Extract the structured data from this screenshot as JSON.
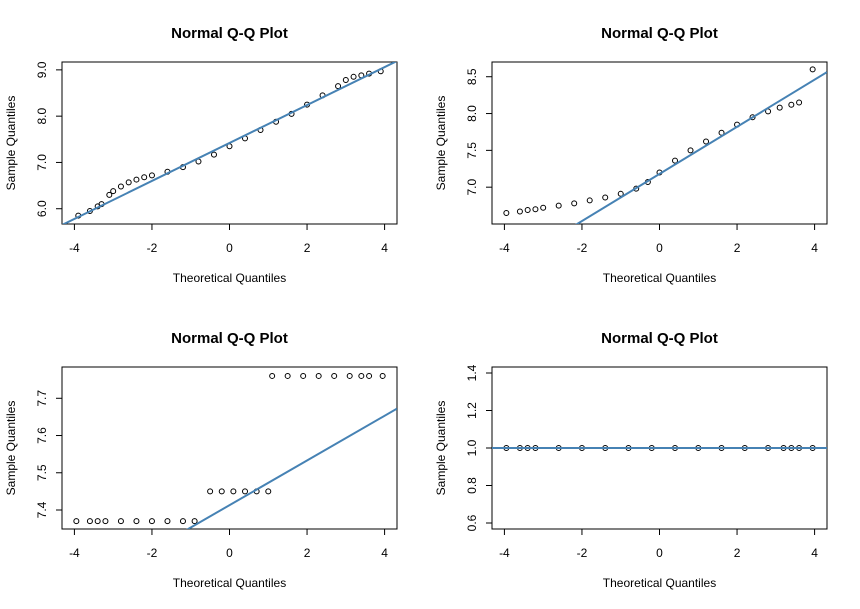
{
  "chart_data": [
    {
      "type": "qq",
      "title": "Normal Q-Q Plot",
      "xlabel": "Theoretical Quantiles",
      "ylabel": "Sample Quantiles",
      "xlim": [
        -4.32,
        4.32
      ],
      "ylim": [
        5.67,
        9.17
      ],
      "xticks": [
        -4,
        -2,
        0,
        2,
        4
      ],
      "yticks": [
        {
          "value": 6,
          "label": "6.0"
        },
        {
          "value": 7,
          "label": "7.0"
        },
        {
          "value": 8,
          "label": "8.0"
        },
        {
          "value": 9,
          "label": "9.0"
        }
      ],
      "point_color": "#000000",
      "line_color": "#4682b4",
      "x": [
        -3.9,
        -3.6,
        -3.4,
        -3.3,
        -3.1,
        -3.0,
        -2.8,
        -2.6,
        -2.4,
        -2.2,
        -2.0,
        -1.6,
        -1.2,
        -0.8,
        -0.4,
        0,
        0.4,
        0.8,
        1.2,
        1.6,
        2.0,
        2.4,
        2.8,
        3.0,
        3.2,
        3.4,
        3.6,
        3.9
      ],
      "y": [
        5.85,
        5.95,
        6.05,
        6.1,
        6.3,
        6.38,
        6.48,
        6.57,
        6.63,
        6.68,
        6.72,
        6.8,
        6.9,
        7.02,
        7.17,
        7.35,
        7.52,
        7.7,
        7.88,
        8.05,
        8.25,
        8.45,
        8.65,
        8.78,
        8.85,
        8.88,
        8.92,
        8.97
      ],
      "line": {
        "intercept": 7.42,
        "slope": 0.41
      }
    },
    {
      "type": "qq",
      "title": "Normal Q-Q Plot",
      "xlabel": "Theoretical Quantiles",
      "ylabel": "Sample Quantiles",
      "xlim": [
        -4.32,
        4.32
      ],
      "ylim": [
        6.5,
        8.7
      ],
      "xticks": [
        -4,
        -2,
        0,
        2,
        4
      ],
      "yticks": [
        {
          "value": 7,
          "label": "7.0"
        },
        7.5,
        {
          "value": 8,
          "label": "8.0"
        },
        8.5
      ],
      "point_color": "#000000",
      "line_color": "#4682b4",
      "x": [
        -3.95,
        -3.6,
        -3.4,
        -3.2,
        -3.0,
        -2.6,
        -2.2,
        -1.8,
        -1.4,
        -1.0,
        -0.6,
        -0.3,
        0,
        0.4,
        0.8,
        1.2,
        1.6,
        2.0,
        2.4,
        2.8,
        3.1,
        3.4,
        3.6,
        3.95
      ],
      "y": [
        6.65,
        6.67,
        6.69,
        6.7,
        6.72,
        6.75,
        6.78,
        6.82,
        6.86,
        6.91,
        6.98,
        7.07,
        7.2,
        7.36,
        7.5,
        7.62,
        7.74,
        7.85,
        7.95,
        8.03,
        8.08,
        8.12,
        8.15,
        8.6
      ],
      "line": {
        "intercept": 7.18,
        "slope": 0.32
      }
    },
    {
      "type": "qq",
      "title": "Normal Q-Q Plot",
      "xlabel": "Theoretical Quantiles",
      "ylabel": "Sample Quantiles",
      "xlim": [
        -4.32,
        4.32
      ],
      "ylim": [
        7.349,
        7.784
      ],
      "xticks": [
        -4,
        -2,
        0,
        2,
        4
      ],
      "yticks": [
        7.4,
        7.5,
        7.6,
        7.7
      ],
      "point_color": "#000000",
      "line_color": "#4682b4",
      "x": [
        -3.95,
        -3.6,
        -3.4,
        -3.2,
        -2.8,
        -2.4,
        -2.0,
        -1.6,
        -1.2,
        -0.9,
        -0.5,
        -0.2,
        0.1,
        0.4,
        0.7,
        1.0,
        1.1,
        1.5,
        1.9,
        2.3,
        2.7,
        3.1,
        3.4,
        3.6,
        3.95
      ],
      "y": [
        7.37,
        7.37,
        7.37,
        7.37,
        7.37,
        7.37,
        7.37,
        7.37,
        7.37,
        7.37,
        7.45,
        7.45,
        7.45,
        7.45,
        7.45,
        7.45,
        7.76,
        7.76,
        7.76,
        7.76,
        7.76,
        7.76,
        7.76,
        7.76,
        7.76
      ],
      "line": {
        "intercept": 7.413,
        "slope": 0.06
      }
    },
    {
      "type": "qq",
      "title": "Normal Q-Q Plot",
      "xlabel": "Theoretical Quantiles",
      "ylabel": "Sample Quantiles",
      "xlim": [
        -4.32,
        4.32
      ],
      "ylim": [
        0.568,
        1.432
      ],
      "xticks": [
        -4,
        -2,
        0,
        2,
        4
      ],
      "yticks": [
        0.6,
        0.8,
        {
          "value": 1,
          "label": "1.0"
        },
        1.2,
        1.4
      ],
      "point_color": "#000000",
      "line_color": "#4682b4",
      "x": [
        -3.95,
        -3.6,
        -3.4,
        -3.2,
        -2.6,
        -2.0,
        -1.4,
        -0.8,
        -0.2,
        0.4,
        1.0,
        1.6,
        2.2,
        2.8,
        3.2,
        3.4,
        3.6,
        3.95
      ],
      "y": [
        1,
        1,
        1,
        1,
        1,
        1,
        1,
        1,
        1,
        1,
        1,
        1,
        1,
        1,
        1,
        1,
        1,
        1
      ],
      "line": {
        "intercept": 1,
        "slope": 0
      }
    }
  ]
}
